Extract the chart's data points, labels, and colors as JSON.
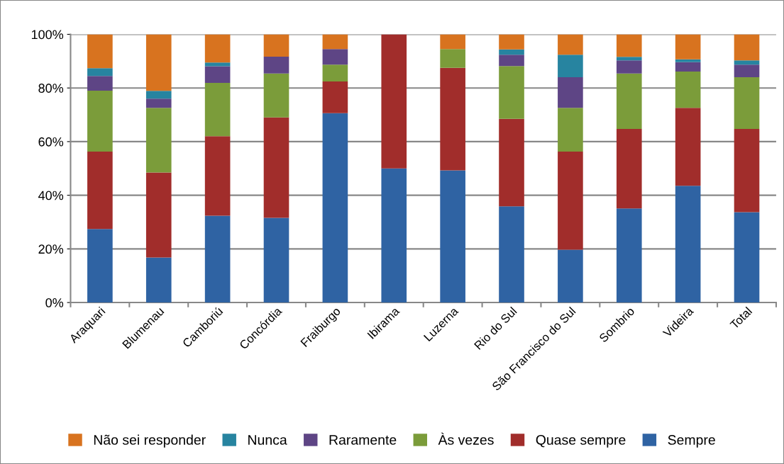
{
  "chart_data": {
    "type": "bar",
    "stacked": true,
    "categories": [
      "Araquari",
      "Blumenau",
      "Camboriú",
      "Concórdia",
      "Fraiburgo",
      "Ibirama",
      "Luzerna",
      "Rio do Sul",
      "São Francisco do Sul",
      "Sombrio",
      "Videira",
      "Total"
    ],
    "series": [
      {
        "name": "Sempre",
        "color": "#2f63a3",
        "values": [
          27.4,
          16.8,
          32.4,
          31.6,
          70.6,
          50,
          49.3,
          35.9,
          19.7,
          35.1,
          43.5,
          33.7
        ]
      },
      {
        "name": "Quase sempre",
        "color": "#a12d2b",
        "values": [
          28.9,
          31.7,
          29.6,
          37.4,
          11.8,
          50,
          38.2,
          32.6,
          36.6,
          29.6,
          29.1,
          31.0
        ]
      },
      {
        "name": "Às vezes",
        "color": "#7b9c3a",
        "values": [
          22.7,
          24.1,
          19.9,
          16.4,
          6.3,
          0,
          7.0,
          19.7,
          16.3,
          20.7,
          13.5,
          19.3
        ]
      },
      {
        "name": "Raramente",
        "color": "#5e4585",
        "values": [
          5.5,
          3.4,
          6.2,
          6.3,
          5.8,
          0,
          0,
          4.2,
          11.4,
          4.9,
          3.5,
          4.7
        ]
      },
      {
        "name": "Nunca",
        "color": "#2784a0",
        "values": [
          2.9,
          2.9,
          1.4,
          0,
          0,
          0,
          0,
          2.0,
          8.4,
          1.3,
          1.1,
          1.6
        ]
      },
      {
        "name": "Não sei responder",
        "color": "#d8731f",
        "values": [
          12.6,
          21.1,
          10.5,
          8.3,
          5.5,
          0,
          5.5,
          5.6,
          7.6,
          8.4,
          9.3,
          9.7
        ]
      }
    ],
    "ylim": [
      0,
      100
    ],
    "yticks": [
      {
        "value": 0,
        "label": "0%"
      },
      {
        "value": 20,
        "label": "20%"
      },
      {
        "value": 40,
        "label": "40%"
      },
      {
        "value": 60,
        "label": "60%"
      },
      {
        "value": 80,
        "label": "80%"
      },
      {
        "value": 100,
        "label": "100%"
      }
    ],
    "grid": "y",
    "legend": "bottom"
  }
}
